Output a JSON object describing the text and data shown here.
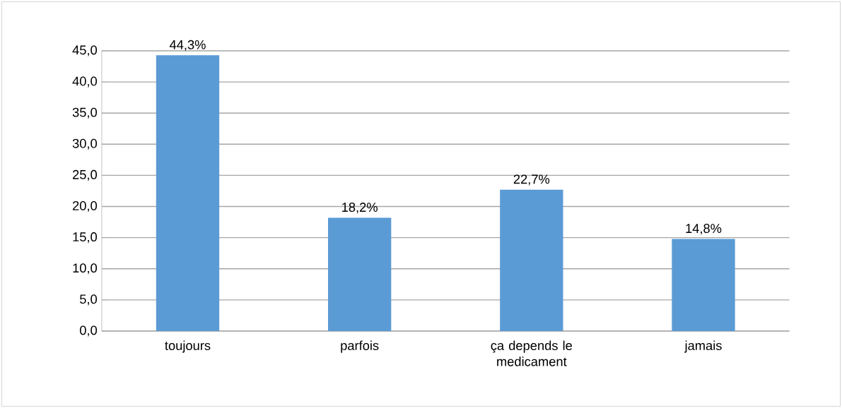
{
  "chart_data": {
    "type": "bar",
    "categories": [
      "toujours",
      "parfois",
      "ça depends le medicament",
      "jamais"
    ],
    "values": [
      44.3,
      18.2,
      22.7,
      14.8
    ],
    "value_labels": [
      "44,3%",
      "18,2%",
      "22,7%",
      "14,8%"
    ],
    "color": "#5b9bd5",
    "ylim": [
      0,
      45
    ],
    "yticks": [
      {
        "value": 0,
        "label": "0,0"
      },
      {
        "value": 5,
        "label": "5,0"
      },
      {
        "value": 10,
        "label": "10,0"
      },
      {
        "value": 15,
        "label": "15,0"
      },
      {
        "value": 20,
        "label": "20,0"
      },
      {
        "value": 25,
        "label": "25,0"
      },
      {
        "value": 30,
        "label": "30,0"
      },
      {
        "value": 35,
        "label": "35,0"
      },
      {
        "value": 40,
        "label": "40,0"
      },
      {
        "value": 45,
        "label": "45,0"
      }
    ],
    "grid": "y"
  }
}
